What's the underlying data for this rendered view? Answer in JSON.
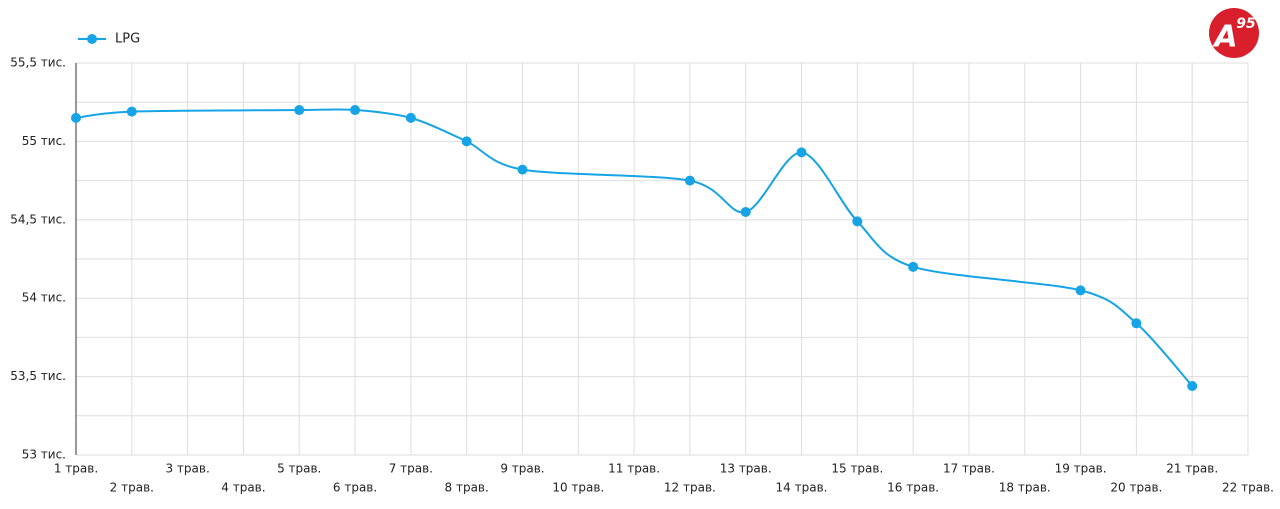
{
  "chart_data": {
    "type": "line",
    "logo": [
      "A",
      "95"
    ],
    "series": [
      {
        "name": "LPG",
        "color": "#17a4e6",
        "x": [
          1,
          2,
          5,
          6,
          7,
          8,
          9,
          12,
          13,
          14,
          15,
          16,
          19,
          20,
          21
        ],
        "values": [
          55150,
          55190,
          55200,
          55200,
          55150,
          55000,
          54820,
          54750,
          54550,
          54930,
          54490,
          54200,
          54050,
          53840,
          53440
        ]
      }
    ],
    "xlim": [
      1,
      22
    ],
    "xticks": [
      {
        "value": 1,
        "label": "1 трав."
      },
      {
        "value": 2,
        "label": "2 трав."
      },
      {
        "value": 3,
        "label": "3 трав."
      },
      {
        "value": 4,
        "label": "4 трав."
      },
      {
        "value": 5,
        "label": "5 трав."
      },
      {
        "value": 6,
        "label": "6 трав."
      },
      {
        "value": 7,
        "label": "7 трав."
      },
      {
        "value": 8,
        "label": "8 трав."
      },
      {
        "value": 9,
        "label": "9 трав."
      },
      {
        "value": 10,
        "label": "10 трав."
      },
      {
        "value": 11,
        "label": "11 трав."
      },
      {
        "value": 12,
        "label": "12 трав."
      },
      {
        "value": 13,
        "label": "13 трав."
      },
      {
        "value": 14,
        "label": "14 трав."
      },
      {
        "value": 15,
        "label": "15 трав."
      },
      {
        "value": 16,
        "label": "16 трав."
      },
      {
        "value": 17,
        "label": "17 трав."
      },
      {
        "value": 18,
        "label": "18 трав."
      },
      {
        "value": 19,
        "label": "19 трав."
      },
      {
        "value": 20,
        "label": "20 трав."
      },
      {
        "value": 21,
        "label": "21 трав."
      },
      {
        "value": 22,
        "label": "22 трав."
      }
    ],
    "ylim": [
      53000,
      55500
    ],
    "yticks": [
      {
        "value": 53000,
        "label": "53 тис."
      },
      {
        "value": 53500,
        "label": "53,5 тис."
      },
      {
        "value": 54000,
        "label": "54 тис."
      },
      {
        "value": 54500,
        "label": "54,5 тис."
      },
      {
        "value": 55000,
        "label": "55 тис."
      },
      {
        "value": 55500,
        "label": "55,5 тис."
      }
    ],
    "minor_yticks": [
      53250,
      53750,
      54250,
      54750,
      55250
    ],
    "grid": true,
    "legend": "top-left"
  }
}
